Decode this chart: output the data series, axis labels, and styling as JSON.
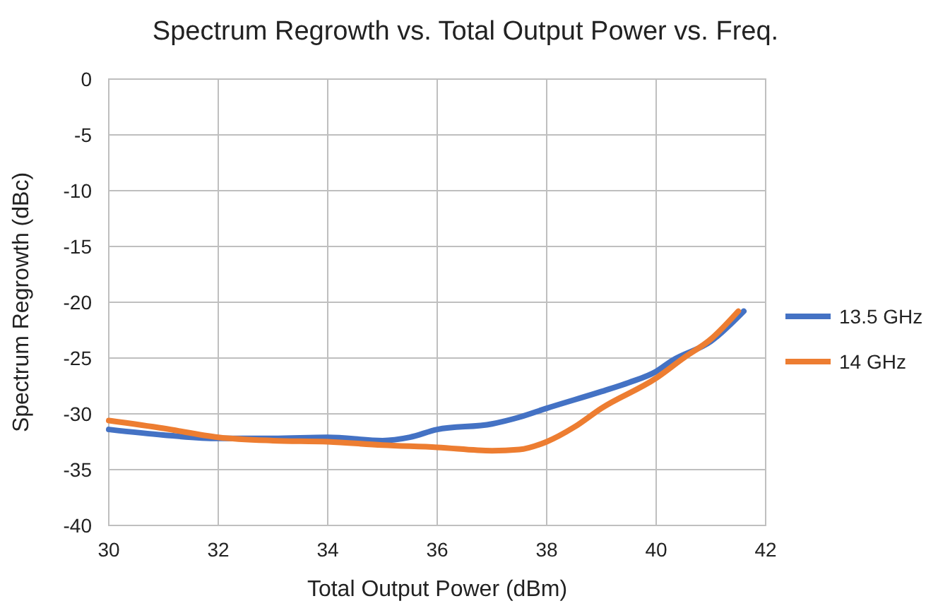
{
  "chart_data": {
    "type": "line",
    "title": "Spectrum Regrowth vs. Total Output Power vs. Freq.",
    "xlabel": "Total Output Power (dBm)",
    "ylabel": "Spectrum Regrowth (dBc)",
    "xlim": [
      30,
      42
    ],
    "xticks": [
      30,
      32,
      34,
      36,
      38,
      40,
      42
    ],
    "ylim": [
      -40,
      0
    ],
    "yticks": [
      -40,
      -35,
      -30,
      -25,
      -20,
      -15,
      -10,
      -5,
      0
    ],
    "grid": true,
    "legend": "right",
    "marker": "none",
    "line_style": "solid",
    "series": [
      {
        "name": "13.5 GHz",
        "color": "#4472c4",
        "x": [
          30,
          31,
          32,
          33,
          34,
          35,
          35.5,
          36,
          37,
          37.5,
          38,
          39,
          39.5,
          40,
          40.3,
          41,
          41.6
        ],
        "values": [
          -31.4,
          -31.9,
          -32.2,
          -32.2,
          -32.1,
          -32.4,
          -32.1,
          -31.4,
          -30.9,
          -30.3,
          -29.5,
          -28.0,
          -27.2,
          -26.2,
          -25.2,
          -23.5,
          -20.8
        ]
      },
      {
        "name": "14 GHz",
        "color": "#ed7d31",
        "x": [
          30,
          31,
          32,
          33,
          34,
          35,
          36,
          37,
          37.5,
          38,
          38.5,
          39,
          40,
          40.5,
          41,
          41.5
        ],
        "values": [
          -30.6,
          -31.3,
          -32.1,
          -32.4,
          -32.5,
          -32.8,
          -33.0,
          -33.3,
          -33.2,
          -32.5,
          -31.2,
          -29.5,
          -26.8,
          -25.0,
          -23.3,
          -20.8
        ]
      }
    ]
  }
}
